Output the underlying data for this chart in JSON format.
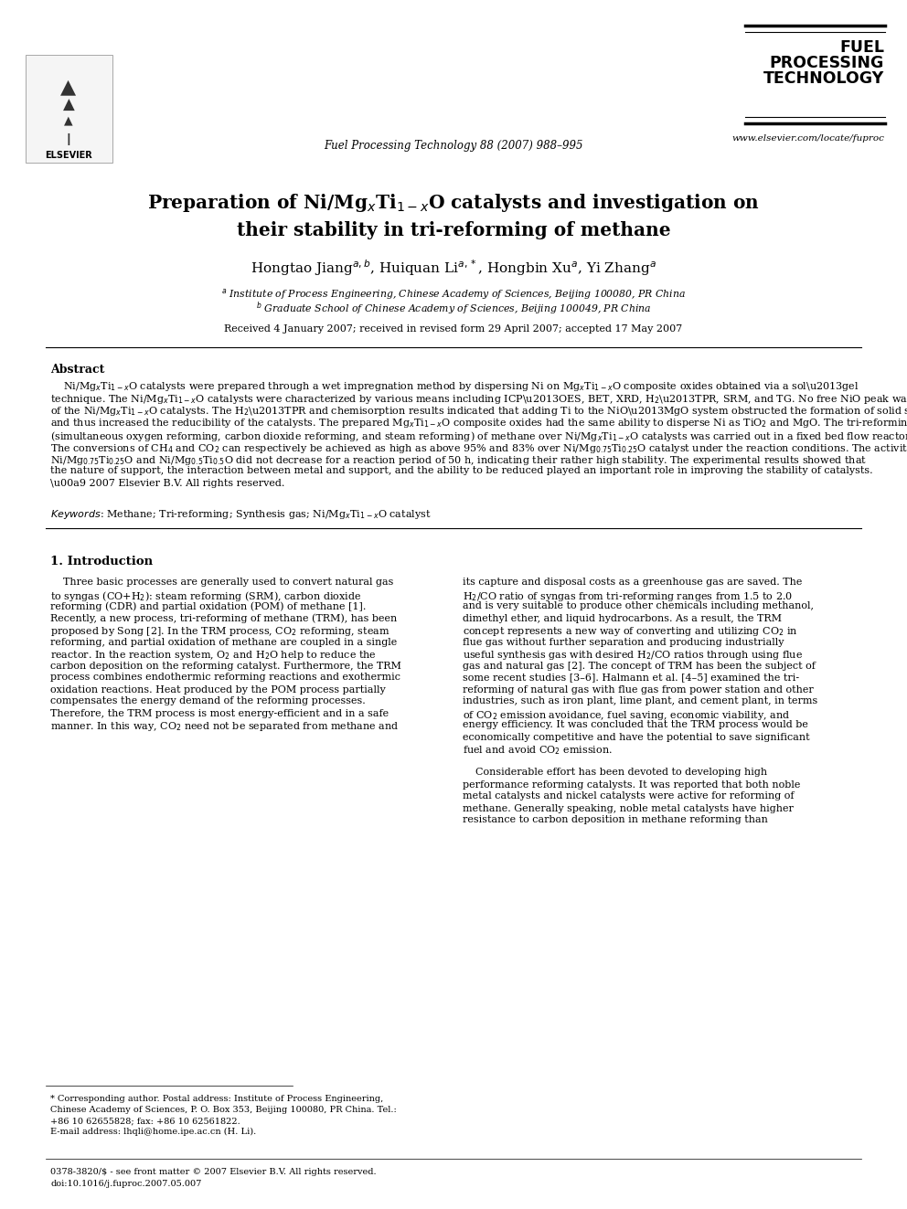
{
  "page_bg": "#ffffff",
  "journal_ref": "Fuel Processing Technology 88 (2007) 988–995",
  "website": "www.elsevier.com/locate/fuproc",
  "footer_issn": "0378-3820/$ - see front matter © 2007 Elsevier B.V. All rights reserved.",
  "footer_doi": "doi:10.1016/j.fuproc.2007.05.007"
}
